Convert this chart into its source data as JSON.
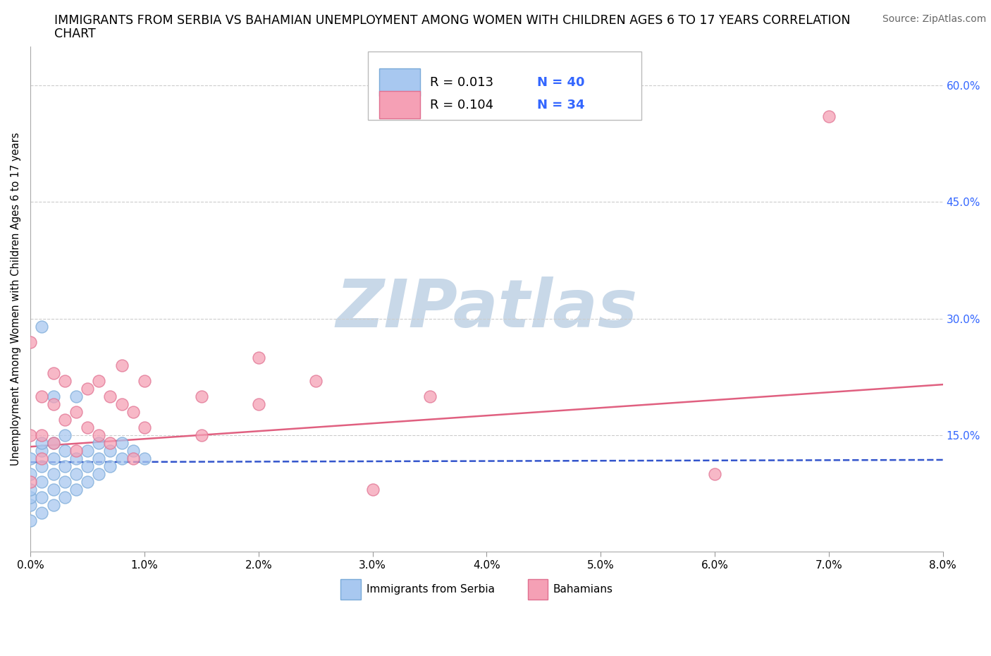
{
  "title_line1": "IMMIGRANTS FROM SERBIA VS BAHAMIAN UNEMPLOYMENT AMONG WOMEN WITH CHILDREN AGES 6 TO 17 YEARS CORRELATION",
  "title_line2": "CHART",
  "source": "Source: ZipAtlas.com",
  "ylabel": "Unemployment Among Women with Children Ages 6 to 17 years",
  "xlim": [
    0.0,
    0.08
  ],
  "ylim": [
    0.0,
    0.65
  ],
  "xtick_labels": [
    "0.0%",
    "1.0%",
    "2.0%",
    "3.0%",
    "4.0%",
    "5.0%",
    "6.0%",
    "7.0%",
    "8.0%"
  ],
  "xtick_vals": [
    0.0,
    0.01,
    0.02,
    0.03,
    0.04,
    0.05,
    0.06,
    0.07,
    0.08
  ],
  "ytick_labels": [
    "15.0%",
    "30.0%",
    "45.0%",
    "60.0%"
  ],
  "ytick_vals": [
    0.15,
    0.3,
    0.45,
    0.6
  ],
  "serbia_color": "#A8C8F0",
  "bahamian_color": "#F5A0B5",
  "serbia_edge": "#7AAAD8",
  "bahamian_edge": "#E07090",
  "serbia_line_color": "#3355CC",
  "bahamian_line_color": "#E06080",
  "watermark": "ZIPatlas",
  "watermark_color": "#C8D8E8",
  "serbia_x": [
    0.0,
    0.0,
    0.0,
    0.0,
    0.0,
    0.0,
    0.001,
    0.001,
    0.001,
    0.001,
    0.001,
    0.001,
    0.001,
    0.002,
    0.002,
    0.002,
    0.002,
    0.002,
    0.002,
    0.003,
    0.003,
    0.003,
    0.003,
    0.003,
    0.004,
    0.004,
    0.004,
    0.004,
    0.005,
    0.005,
    0.005,
    0.006,
    0.006,
    0.006,
    0.007,
    0.007,
    0.008,
    0.008,
    0.009,
    0.01
  ],
  "serbia_y": [
    0.04,
    0.06,
    0.07,
    0.08,
    0.1,
    0.12,
    0.05,
    0.07,
    0.09,
    0.11,
    0.13,
    0.14,
    0.29,
    0.06,
    0.08,
    0.1,
    0.12,
    0.14,
    0.2,
    0.07,
    0.09,
    0.11,
    0.13,
    0.15,
    0.08,
    0.1,
    0.12,
    0.2,
    0.09,
    0.11,
    0.13,
    0.1,
    0.12,
    0.14,
    0.11,
    0.13,
    0.12,
    0.14,
    0.13,
    0.12
  ],
  "bahamian_x": [
    0.0,
    0.0,
    0.0,
    0.001,
    0.001,
    0.001,
    0.002,
    0.002,
    0.002,
    0.003,
    0.003,
    0.004,
    0.004,
    0.005,
    0.005,
    0.006,
    0.006,
    0.007,
    0.007,
    0.008,
    0.008,
    0.009,
    0.009,
    0.01,
    0.01,
    0.015,
    0.015,
    0.02,
    0.02,
    0.025,
    0.03,
    0.035,
    0.06,
    0.07
  ],
  "bahamian_y": [
    0.27,
    0.15,
    0.09,
    0.2,
    0.15,
    0.12,
    0.23,
    0.19,
    0.14,
    0.22,
    0.17,
    0.18,
    0.13,
    0.21,
    0.16,
    0.22,
    0.15,
    0.2,
    0.14,
    0.19,
    0.24,
    0.18,
    0.12,
    0.22,
    0.16,
    0.2,
    0.15,
    0.19,
    0.25,
    0.22,
    0.08,
    0.2,
    0.1,
    0.56
  ],
  "serbia_trend_x": [
    0.0,
    0.08
  ],
  "serbia_trend_y": [
    0.115,
    0.118
  ],
  "bahamian_trend_x": [
    0.0,
    0.08
  ],
  "bahamian_trend_y": [
    0.135,
    0.215
  ],
  "grid_color": "#CCCCCC",
  "bg_color": "#FFFFFF",
  "title_fontsize": 12.5,
  "axis_label_fontsize": 10.5,
  "tick_fontsize": 11,
  "legend_fontsize": 13,
  "source_fontsize": 10,
  "right_tick_color": "#3366FF",
  "legend_R_serbia": "R = 0.013",
  "legend_N_serbia": "N = 40",
  "legend_R_bahamian": "R = 0.104",
  "legend_N_bahamian": "N = 34",
  "bottom_legend_serbia": "Immigrants from Serbia",
  "bottom_legend_bahamian": "Bahamians"
}
